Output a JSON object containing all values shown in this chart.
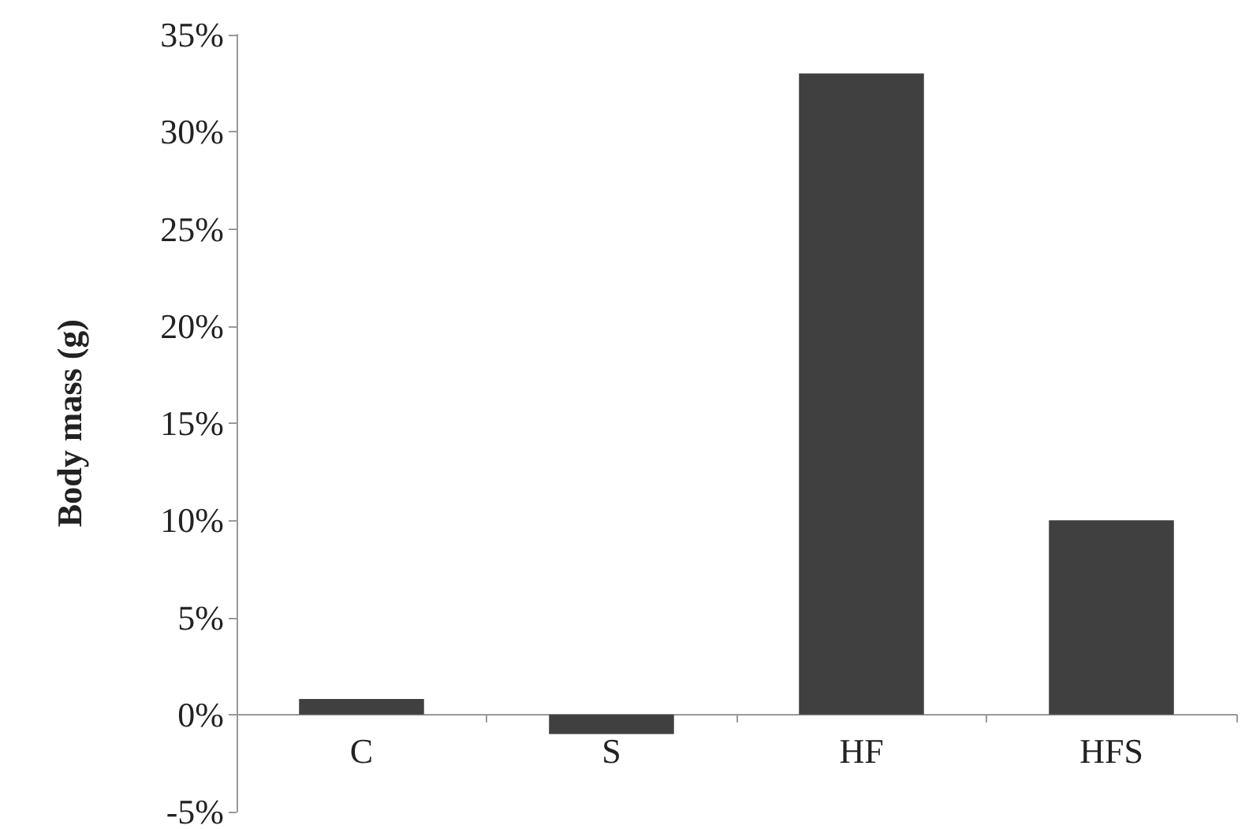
{
  "chart_data": {
    "type": "bar",
    "ylabel": "Body mass (g)",
    "categories": [
      "C",
      "S",
      "HF",
      "HFS"
    ],
    "series": [
      {
        "color": "#404040",
        "values": [
          0.8,
          -1,
          33,
          10
        ]
      }
    ],
    "ylim": [
      -5,
      35
    ],
    "yticks": [
      {
        "value": -5,
        "label": "-5%"
      },
      {
        "value": 0,
        "label": "0%"
      },
      {
        "value": 5,
        "label": "5%"
      },
      {
        "value": 10,
        "label": "10%"
      },
      {
        "value": 15,
        "label": "15%"
      },
      {
        "value": 20,
        "label": "20%"
      },
      {
        "value": 25,
        "label": "25%"
      },
      {
        "value": 30,
        "label": "30%"
      },
      {
        "value": 35,
        "label": "35%"
      }
    ]
  }
}
